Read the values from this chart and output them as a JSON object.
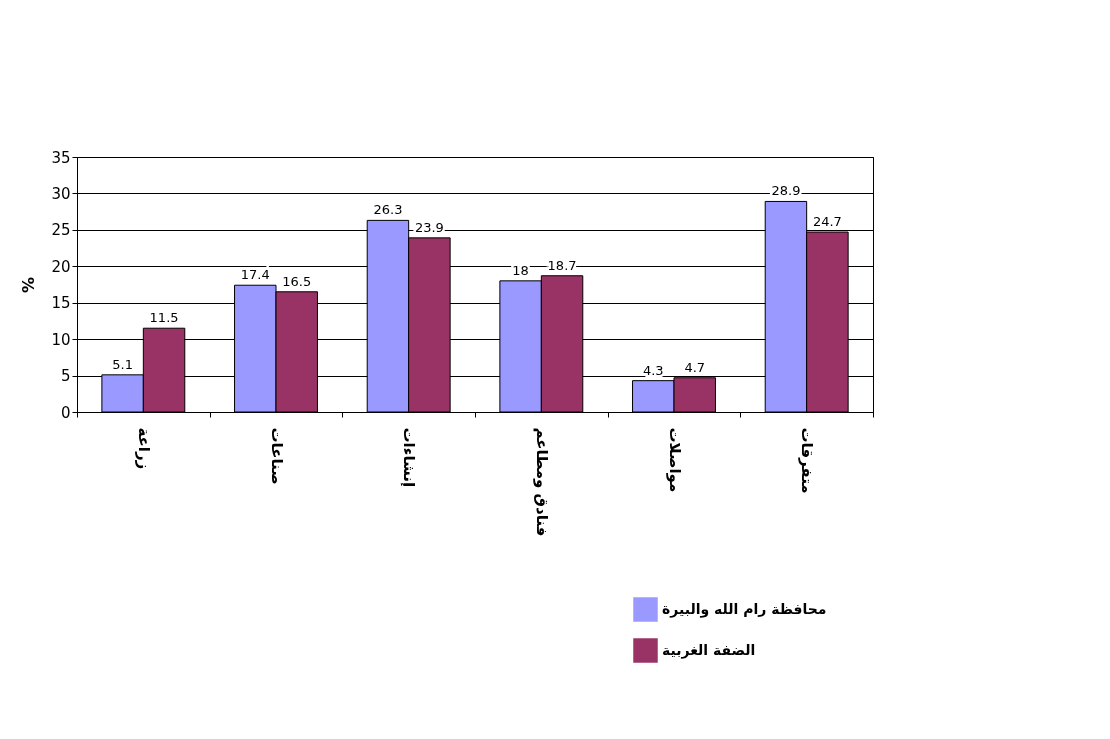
{
  "chart_data": {
    "type": "bar",
    "ylabel": "%",
    "categories": [
      "زراعة",
      "صناعات",
      "إنشاءات",
      "فنادق ومطاعم",
      "مواصلات",
      "متفرقات"
    ],
    "series": [
      {
        "name": "محافظة رام الله والبيرة",
        "color": "#9999ff",
        "values": [
          5.1,
          17.4,
          26.3,
          18,
          4.3,
          28.9
        ]
      },
      {
        "name": "الضفة الغربية",
        "color": "#993366",
        "values": [
          11.5,
          16.5,
          23.9,
          18.7,
          4.7,
          24.7
        ]
      }
    ],
    "ylim": [
      0,
      35
    ],
    "yticks": [
      0,
      5,
      10,
      15,
      20,
      25,
      30,
      35
    ],
    "grid": "y",
    "data_labels": true,
    "legend": "bottom right"
  }
}
